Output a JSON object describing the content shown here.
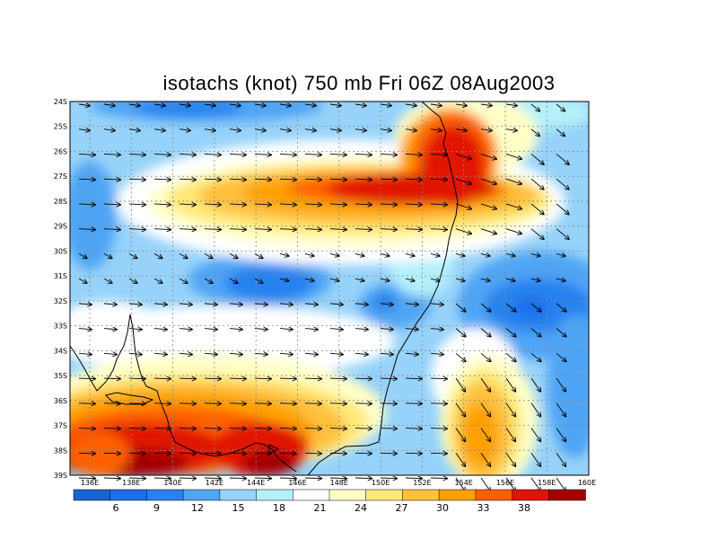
{
  "title": "isotachs (knot) 750 mb Fri 06Z 08Aug2003",
  "lat_labels": [
    "24S",
    "25S",
    "26S",
    "27S",
    "28S",
    "29S",
    "30S",
    "31S",
    "32S",
    "33S",
    "34S",
    "35S",
    "36S",
    "37S",
    "38S",
    "39S"
  ],
  "lon_labels": [
    "136E",
    "138E",
    "140E",
    "142E",
    "144E",
    "146E",
    "148E",
    "150E",
    "152E",
    "154E",
    "156E",
    "158E",
    "160E"
  ],
  "colorbar": {
    "colors": [
      "#1464d2",
      "#1e6eeb",
      "#2882f0",
      "#50a5f5",
      "#96d2fa",
      "#b4f0fa",
      "#ffffff",
      "#ffffc8",
      "#ffe878",
      "#ffc03c",
      "#ffa000",
      "#ff6000",
      "#e11400",
      "#a50000"
    ],
    "labels": [
      "6",
      "9",
      "12",
      "15",
      "18",
      "21",
      "24",
      "27",
      "30",
      "33",
      "38"
    ]
  },
  "palette": {
    "blue_dark": "#1464d2",
    "blue": "#2882f0",
    "blue_mid": "#50a5f5",
    "blue_light": "#96d2fa",
    "cyan_pale": "#b4f0fa",
    "white": "#ffffff",
    "yellow_pale": "#ffffc8",
    "yellow": "#ffe878",
    "orange_light": "#ffc03c",
    "orange": "#ffa000",
    "orange_red": "#ff6000",
    "red": "#e11400",
    "red_dark": "#a50000"
  }
}
